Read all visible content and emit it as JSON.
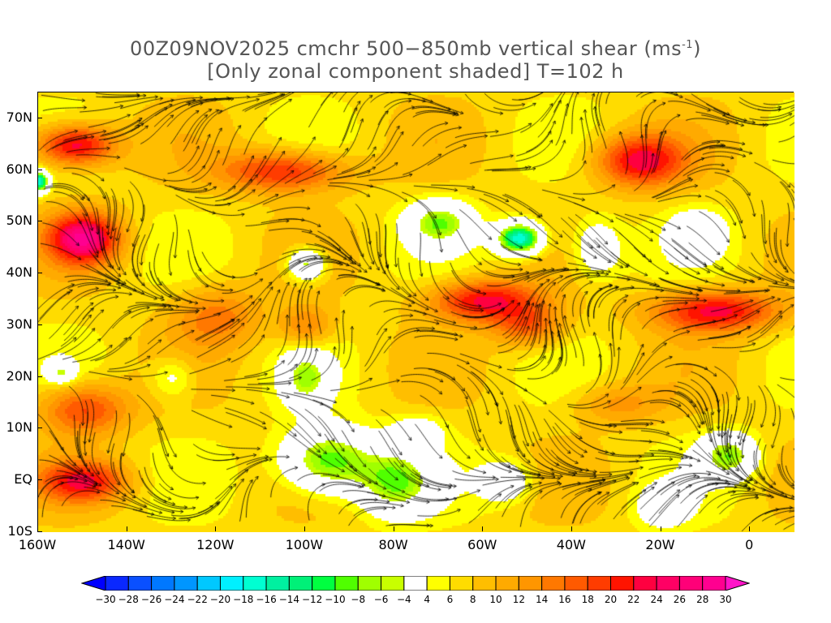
{
  "title": {
    "line1": "00Z09NOV2025 cmchr 500−850mb vertical shear (ms",
    "line1_sup": "-1",
    "line1_end": ")",
    "line2": "[Only zonal component shaded] T=102 h"
  },
  "map": {
    "lon_range": [
      -160,
      10
    ],
    "lat_range": [
      -10,
      75
    ],
    "y_ticks": [
      {
        "lat": 70,
        "label": "70N"
      },
      {
        "lat": 60,
        "label": "60N"
      },
      {
        "lat": 50,
        "label": "50N"
      },
      {
        "lat": 40,
        "label": "40N"
      },
      {
        "lat": 30,
        "label": "30N"
      },
      {
        "lat": 20,
        "label": "20N"
      },
      {
        "lat": 10,
        "label": "10N"
      },
      {
        "lat": 0,
        "label": "EQ"
      },
      {
        "lat": -10,
        "label": "10S"
      }
    ],
    "x_ticks": [
      {
        "lon": -160,
        "label": "160W"
      },
      {
        "lon": -140,
        "label": "140W"
      },
      {
        "lon": -120,
        "label": "120W"
      },
      {
        "lon": -100,
        "label": "100W"
      },
      {
        "lon": -80,
        "label": "80W"
      },
      {
        "lon": -60,
        "label": "60W"
      },
      {
        "lon": -40,
        "label": "40W"
      },
      {
        "lon": -20,
        "label": "20W"
      },
      {
        "lon": 0,
        "label": "0"
      }
    ]
  },
  "colorbar": {
    "levels": [
      -30,
      -28,
      -26,
      -24,
      -22,
      -20,
      -18,
      -16,
      -14,
      -12,
      -10,
      -8,
      -6,
      -4,
      4,
      6,
      8,
      10,
      12,
      14,
      16,
      18,
      20,
      22,
      24,
      26,
      28,
      30
    ],
    "labels": [
      "−30",
      "−28",
      "−26",
      "−24",
      "−22",
      "−20",
      "−18",
      "−16",
      "−14",
      "−12",
      "−10",
      "−8",
      "−6",
      "−4",
      "4",
      "6",
      "8",
      "10",
      "12",
      "14",
      "16",
      "18",
      "20",
      "22",
      "24",
      "26",
      "28",
      "30"
    ],
    "colors": [
      "#0000ff",
      "#0a28ff",
      "#0a50ff",
      "#0078ff",
      "#0096ff",
      "#00c8ff",
      "#00f0ff",
      "#00ffd2",
      "#00f0a0",
      "#00f078",
      "#00ff40",
      "#50ff00",
      "#a0ff00",
      "#c8ff00",
      "#ffffff",
      "#ffff00",
      "#ffdc00",
      "#ffbe00",
      "#ffaa00",
      "#ff9600",
      "#ff7800",
      "#ff5a00",
      "#ff3c00",
      "#ff1400",
      "#ff0040",
      "#ff0064",
      "#ff0078",
      "#ff0090",
      "#ff14c8"
    ]
  }
}
